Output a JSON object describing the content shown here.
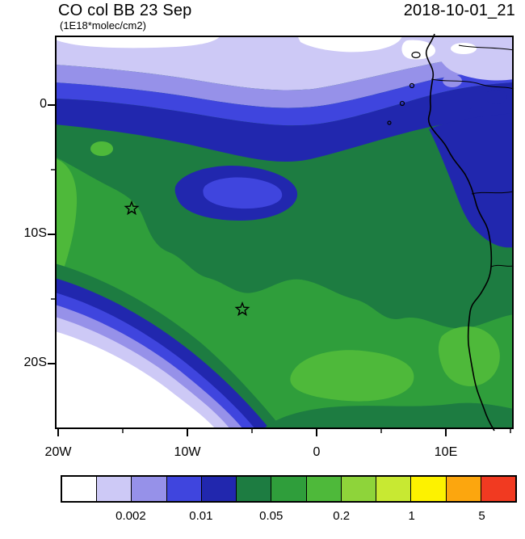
{
  "header": {
    "title": "CO col BB 23 Sep",
    "subtitle": "(1E18*molec/cm2)",
    "date": "2018-10-01_21"
  },
  "map": {
    "y_axis_ticks": [
      "0",
      "10S",
      "20S"
    ],
    "x_axis_ticks": [
      "20W",
      "10W",
      "0",
      "10E"
    ],
    "markers": [
      {
        "symbol": "star",
        "lon": "14W",
        "lat": "8S"
      },
      {
        "symbol": "star",
        "lon": "6W",
        "lat": "16S"
      }
    ]
  },
  "colorbar": {
    "labels": [
      "0.002",
      "0.01",
      "0.05",
      "0.2",
      "1",
      "5"
    ],
    "colors": [
      "#ffffff",
      "#cdc9f6",
      "#9691e9",
      "#3f45de",
      "#2127ae",
      "#1d7c41",
      "#2f9e3b",
      "#4eb93a",
      "#8ed43a",
      "#c8e932",
      "#fdf200",
      "#fca60e",
      "#f13a21"
    ]
  },
  "chart_data": {
    "type": "heatmap",
    "subtype": "filled-contour-map",
    "title": "CO col BB 23 Sep",
    "units": "1E18*molec/cm2",
    "timestamp": "2018-10-01_21",
    "x_ticks": [
      "20W",
      "10W",
      "0",
      "10E"
    ],
    "y_ticks": [
      "0",
      "10S",
      "20S"
    ],
    "lon_range_deg": [
      -20.3,
      15.3
    ],
    "lat_range_deg": [
      5.4,
      -25.1
    ],
    "contour_levels": [
      0.001,
      0.002,
      0.005,
      0.01,
      0.02,
      0.05,
      0.1,
      0.2,
      0.5,
      1,
      2,
      5
    ],
    "palette": [
      "#ffffff",
      "#cdc9f6",
      "#9691e9",
      "#3f45de",
      "#2127ae",
      "#1d7c41",
      "#2f9e3b",
      "#4eb93a",
      "#8ed43a",
      "#c8e932",
      "#fdf200",
      "#fca60e",
      "#f13a21"
    ],
    "legend_position": "bottom",
    "markers": [
      {
        "symbol": "star",
        "lon_deg": -14.3,
        "lat_deg": -8.0
      },
      {
        "symbol": "star",
        "lon_deg": -5.8,
        "lat_deg": -15.8
      }
    ],
    "description": "CO column from biomass burning over the SE Atlantic and western Africa: lowest values (white/lavender/blue, <0.01) across the north band and the southwest ocean corner, a blue low eddy near 6W/7S, and broad green values (0.02-0.2) over the central/southern domain along the Angola-Congo coast."
  }
}
